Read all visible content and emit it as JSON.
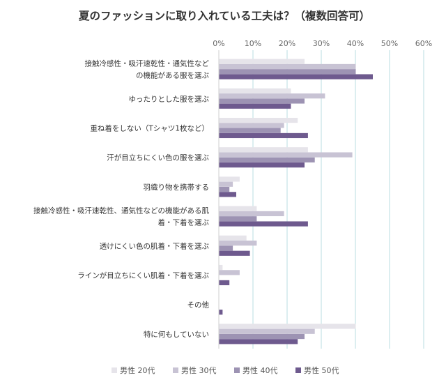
{
  "chart_data": {
    "type": "bar",
    "orientation": "horizontal",
    "title": "夏のファッションに取り入れている工夫は？（複数回答可）",
    "xlabel": "",
    "ylabel": "",
    "xlim": [
      0,
      60
    ],
    "x_ticks": [
      "0%",
      "10%",
      "20%",
      "30%",
      "40%",
      "50%",
      "60%"
    ],
    "grid": "vertical",
    "legend_position": "bottom",
    "categories": [
      [
        "接触冷感性・吸汗速乾性・通気性など",
        "の機能がある服を選ぶ"
      ],
      [
        "ゆったりとした服を選ぶ"
      ],
      [
        "重ね着をしない（Tシャツ1枚など）"
      ],
      [
        "汗が目立ちにくい色の服を選ぶ"
      ],
      [
        "羽織り物を携帯する"
      ],
      [
        "接触冷感性・吸汗速乾性、通気性などの機能がある肌",
        "着・下着を選ぶ"
      ],
      [
        "透けにくい色の肌着・下着を選ぶ"
      ],
      [
        "ラインが目立ちにくい肌着・下着を選ぶ"
      ],
      [
        "その他"
      ],
      [
        "特に何もしていない"
      ]
    ],
    "series": [
      {
        "name": "男性 20代",
        "color": "#e6e4ea",
        "values": [
          25,
          21,
          23,
          26,
          6,
          11,
          8,
          1,
          0,
          40
        ]
      },
      {
        "name": "男性 30代",
        "color": "#c8c3d4",
        "values": [
          40,
          31,
          19,
          39,
          4,
          19,
          11,
          6,
          0,
          28
        ]
      },
      {
        "name": "男性 40代",
        "color": "#9d93b3",
        "values": [
          40,
          25,
          18,
          28,
          3,
          11,
          4,
          0,
          0,
          25
        ]
      },
      {
        "name": "男性 50代",
        "color": "#6e5a8e",
        "values": [
          45,
          21,
          26,
          25,
          5,
          26,
          9,
          3,
          1,
          23
        ]
      }
    ]
  },
  "colors": {
    "grid": "#b9dde0",
    "axis": "#cfcfcf"
  }
}
